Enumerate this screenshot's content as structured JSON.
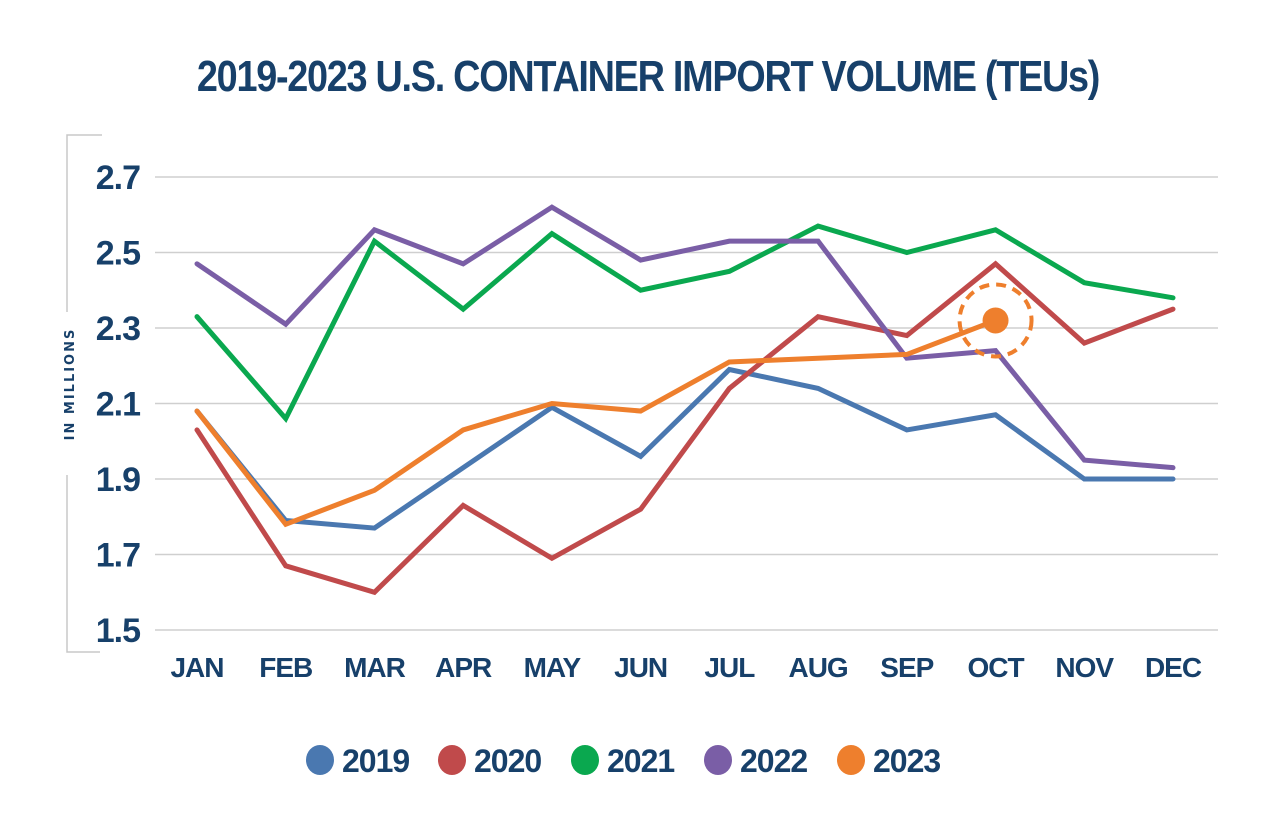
{
  "chart_data": {
    "type": "line",
    "title": "2019-2023 U.S. CONTAINER IMPORT VOLUME (TEUs)",
    "xlabel": "",
    "ylabel": "IN MILLIONS",
    "categories": [
      "JAN",
      "FEB",
      "MAR",
      "APR",
      "MAY",
      "JUN",
      "JUL",
      "AUG",
      "SEP",
      "OCT",
      "NOV",
      "DEC"
    ],
    "y_ticks": [
      2.7,
      2.5,
      2.3,
      2.1,
      1.9,
      1.7,
      1.5
    ],
    "y_tick_labels": [
      "2.7",
      "2.5",
      "2.3",
      "2.1",
      "1.9",
      "1.7",
      "1.5"
    ],
    "ylim": [
      1.5,
      2.7
    ],
    "grid": true,
    "legend_position": "bottom",
    "series": [
      {
        "name": "2019",
        "color": "#4a78b0",
        "values": [
          2.08,
          1.79,
          1.77,
          1.93,
          2.09,
          1.96,
          2.19,
          2.14,
          2.03,
          2.07,
          1.9,
          1.9
        ]
      },
      {
        "name": "2020",
        "color": "#c04a4b",
        "values": [
          2.03,
          1.67,
          1.6,
          1.83,
          1.69,
          1.82,
          2.14,
          2.33,
          2.28,
          2.47,
          2.26,
          2.35
        ]
      },
      {
        "name": "2021",
        "color": "#0aa84f",
        "values": [
          2.33,
          2.06,
          2.53,
          2.35,
          2.55,
          2.4,
          2.45,
          2.57,
          2.5,
          2.56,
          2.42,
          2.38
        ]
      },
      {
        "name": "2022",
        "color": "#7a5ea6",
        "values": [
          2.47,
          2.31,
          2.56,
          2.47,
          2.62,
          2.48,
          2.53,
          2.53,
          2.22,
          2.24,
          1.95,
          1.93
        ]
      },
      {
        "name": "2023",
        "color": "#ee7f2d",
        "values": [
          2.08,
          1.78,
          1.87,
          2.03,
          2.1,
          2.08,
          2.21,
          2.22,
          2.23,
          2.32,
          null,
          null
        ]
      }
    ],
    "annotations": [
      {
        "type": "highlight-marker",
        "series": "2023",
        "category": "OCT",
        "value": 2.32,
        "style": "filled dot with dashed ring"
      }
    ]
  }
}
